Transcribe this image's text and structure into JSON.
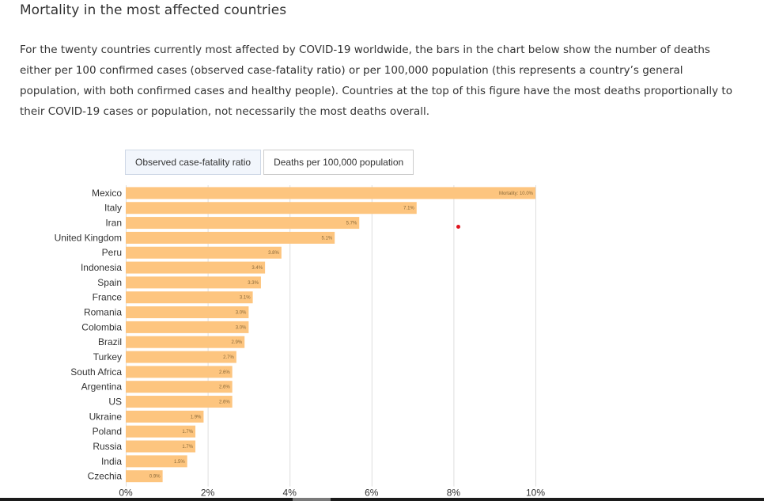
{
  "title": "Mortality in the most affected countries",
  "intro": "For the twenty countries currently most affected by COVID-19 worldwide, the bars in the chart below show the number of deaths either per 100 confirmed cases (observed case-fatality ratio) or per 100,000 population (this represents a country’s general population, with both confirmed cases and healthy people). Countries at the top of this figure have the most deaths proportionally to their COVID-19 cases or population, not necessarily the most deaths overall.",
  "toggle": {
    "option1": "Observed case-fatality ratio",
    "option2": "Deaths per 100,000 population",
    "selected": "Observed case-fatality ratio"
  },
  "colors": {
    "bar": "#fdc57f",
    "grid": "#dedede",
    "marker": "#e0141e"
  },
  "chart_data": {
    "type": "bar",
    "orientation": "horizontal",
    "title": "",
    "xlabel": "",
    "ylabel": "",
    "xlim": [
      0,
      10
    ],
    "xticks": [
      0,
      2,
      4,
      6,
      8,
      10
    ],
    "xtick_labels": [
      "0%",
      "2%",
      "4%",
      "6%",
      "8%",
      "10%"
    ],
    "grid": true,
    "categories": [
      "Mexico",
      "Italy",
      "Iran",
      "United Kingdom",
      "Peru",
      "Indonesia",
      "Spain",
      "France",
      "Romania",
      "Colombia",
      "Brazil",
      "Turkey",
      "South Africa",
      "Argentina",
      "US",
      "Ukraine",
      "Poland",
      "Russia",
      "India",
      "Czechia"
    ],
    "values": [
      10.0,
      7.1,
      5.7,
      5.1,
      3.8,
      3.4,
      3.3,
      3.1,
      3.0,
      3.0,
      2.9,
      2.7,
      2.6,
      2.6,
      2.6,
      1.9,
      1.7,
      1.7,
      1.5,
      0.9
    ],
    "value_labels": [
      "Mortality: 10.0%",
      "7.1%",
      "5.7%",
      "5.1%",
      "3.8%",
      "3.4%",
      "3.3%",
      "3.1%",
      "3.0%",
      "3.0%",
      "2.9%",
      "2.7%",
      "2.6%",
      "2.6%",
      "2.6%",
      "1.9%",
      "1.7%",
      "1.7%",
      "1.5%",
      "0.9%"
    ]
  }
}
